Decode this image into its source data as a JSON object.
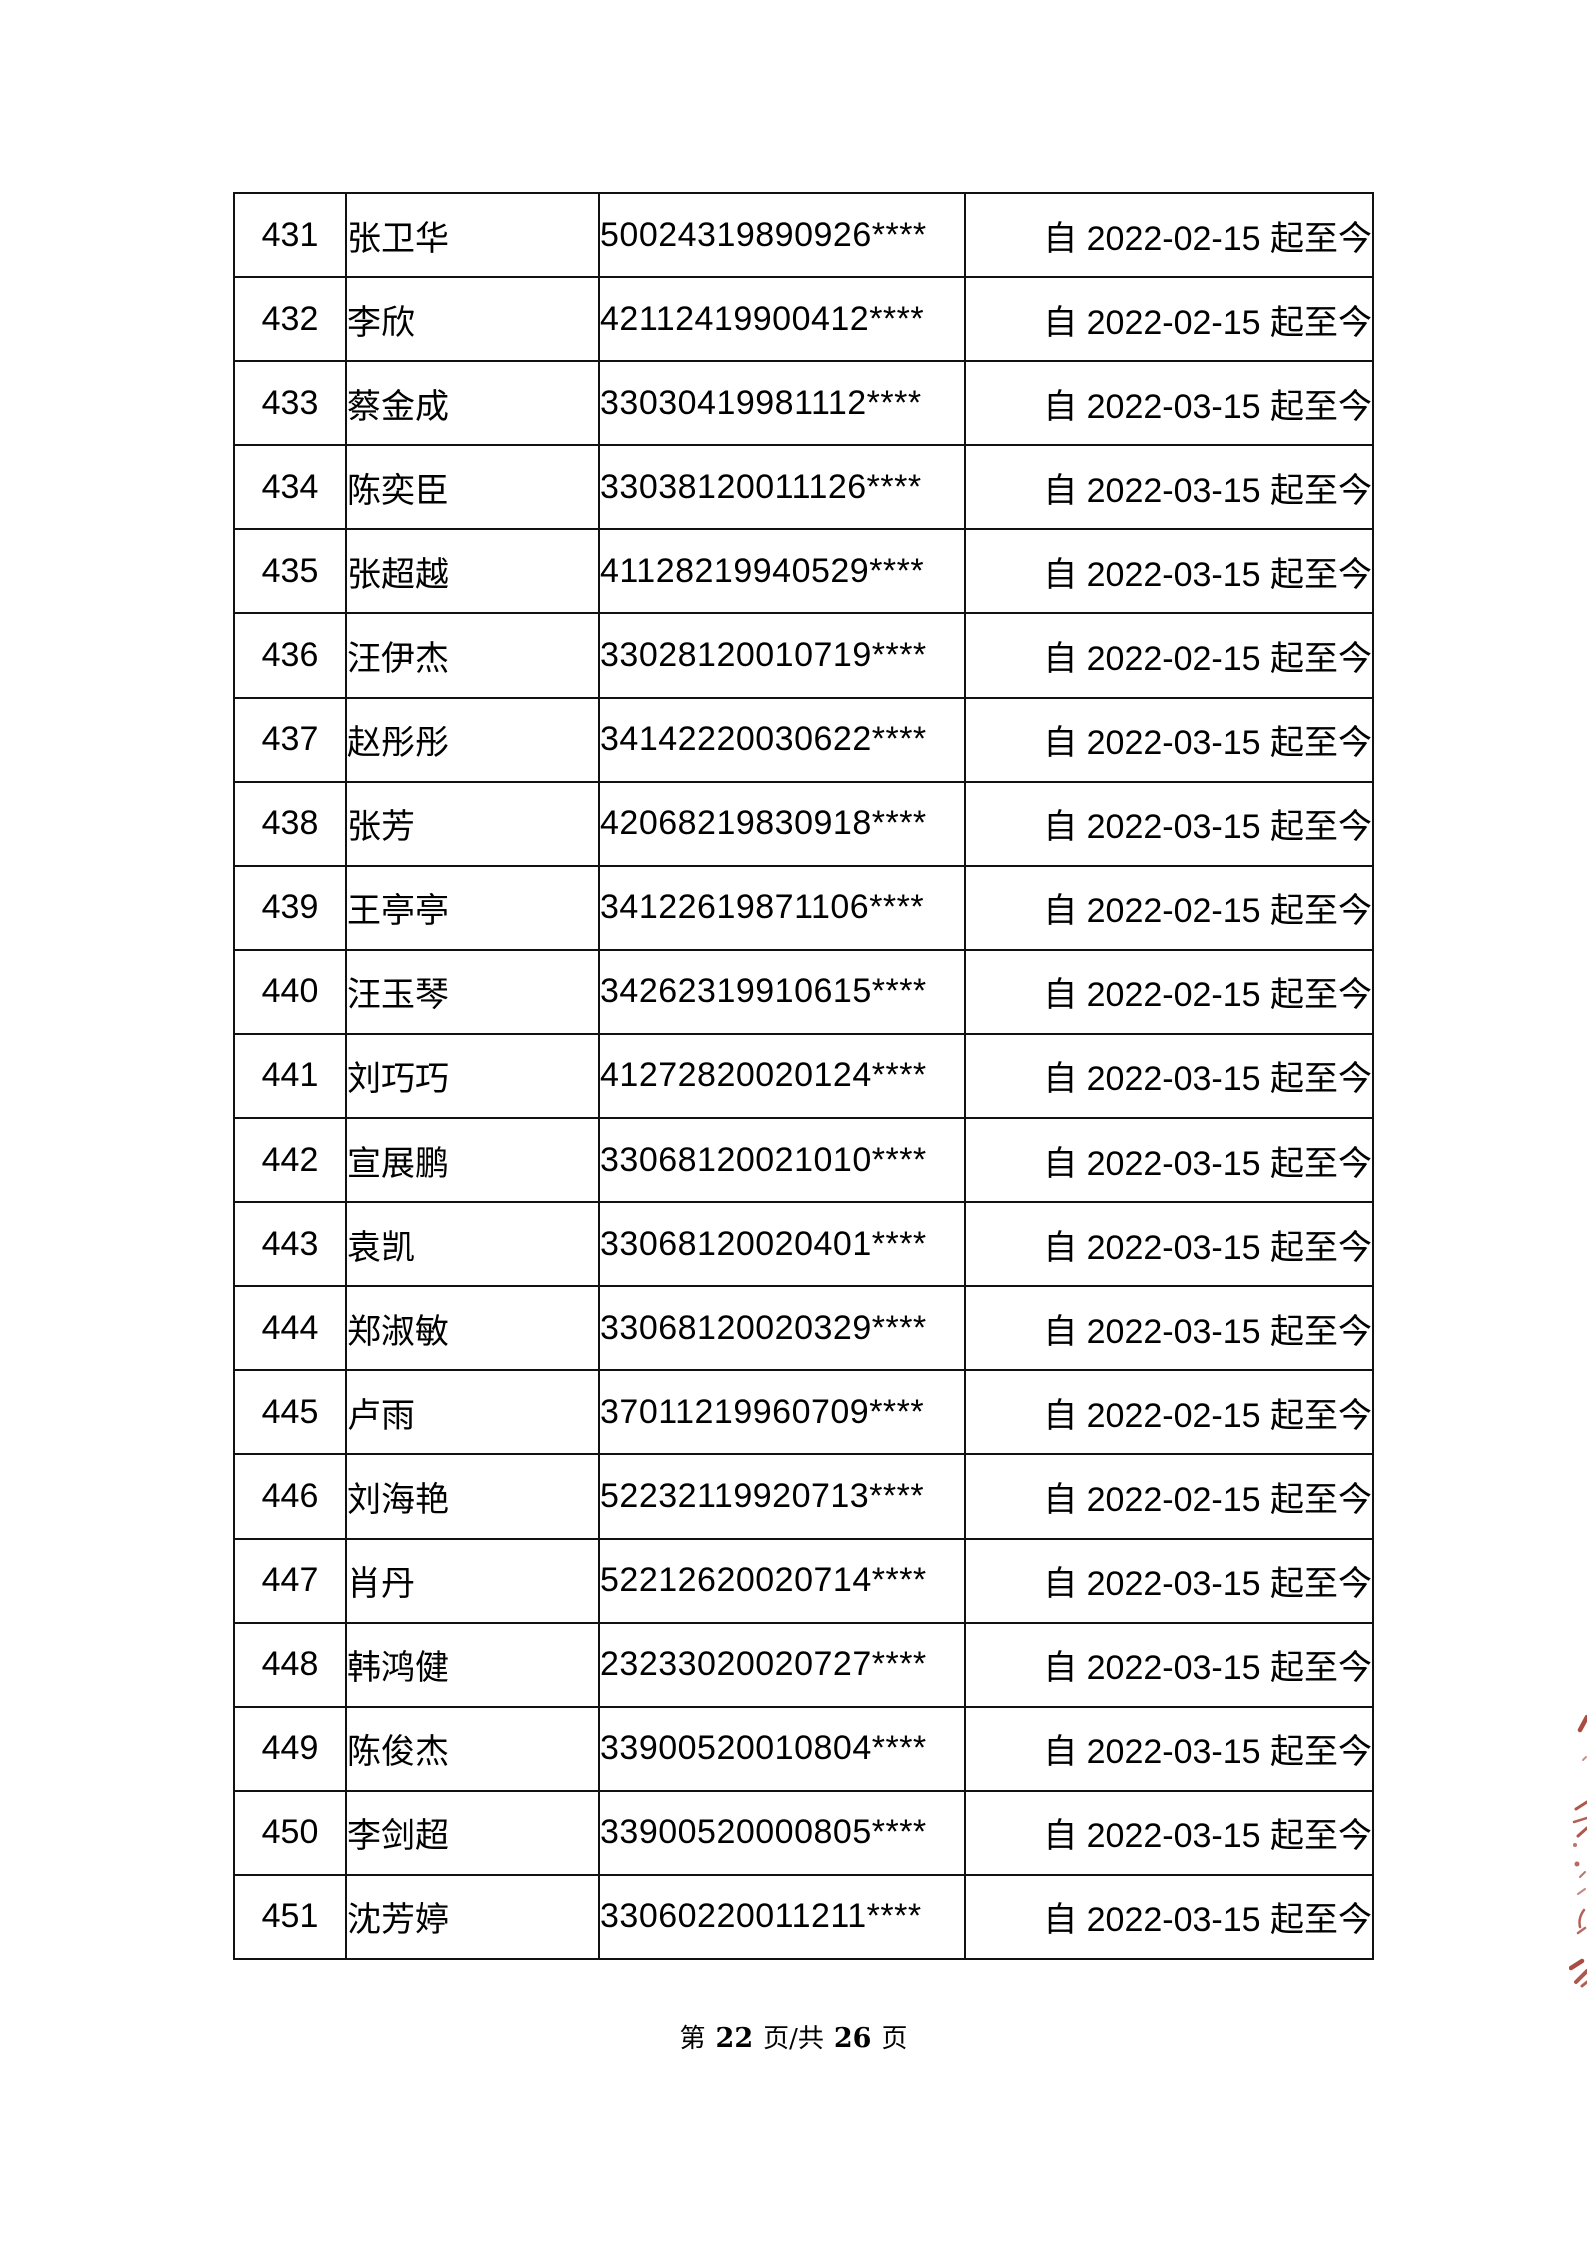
{
  "table": {
    "rows": [
      {
        "no": "431",
        "name": "张卫华",
        "id_number": "50024319890926****",
        "period": "自 2022-02-15 起至今"
      },
      {
        "no": "432",
        "name": "李欣",
        "id_number": "42112419900412****",
        "period": "自 2022-02-15 起至今"
      },
      {
        "no": "433",
        "name": "蔡金成",
        "id_number": "33030419981112****",
        "period": "自 2022-03-15 起至今"
      },
      {
        "no": "434",
        "name": "陈奕臣",
        "id_number": "33038120011126****",
        "period": "自 2022-03-15 起至今"
      },
      {
        "no": "435",
        "name": "张超越",
        "id_number": "41128219940529****",
        "period": "自 2022-03-15 起至今"
      },
      {
        "no": "436",
        "name": "汪伊杰",
        "id_number": "33028120010719****",
        "period": "自 2022-02-15 起至今"
      },
      {
        "no": "437",
        "name": "赵彤彤",
        "id_number": "34142220030622****",
        "period": "自 2022-03-15 起至今"
      },
      {
        "no": "438",
        "name": "张芳",
        "id_number": "42068219830918****",
        "period": "自 2022-03-15 起至今"
      },
      {
        "no": "439",
        "name": "王亭亭",
        "id_number": "34122619871106****",
        "period": "自 2022-02-15 起至今"
      },
      {
        "no": "440",
        "name": "汪玉琴",
        "id_number": "34262319910615****",
        "period": "自 2022-02-15 起至今"
      },
      {
        "no": "441",
        "name": "刘巧巧",
        "id_number": "41272820020124****",
        "period": "自 2022-03-15 起至今"
      },
      {
        "no": "442",
        "name": "宣展鹏",
        "id_number": "33068120021010****",
        "period": "自 2022-03-15 起至今"
      },
      {
        "no": "443",
        "name": "袁凯",
        "id_number": "33068120020401****",
        "period": "自 2022-03-15 起至今"
      },
      {
        "no": "444",
        "name": "郑淑敏",
        "id_number": "33068120020329****",
        "period": "自 2022-03-15 起至今"
      },
      {
        "no": "445",
        "name": "卢雨",
        "id_number": "37011219960709****",
        "period": "自 2022-02-15 起至今"
      },
      {
        "no": "446",
        "name": "刘海艳",
        "id_number": "52232119920713****",
        "period": "自 2022-02-15 起至今"
      },
      {
        "no": "447",
        "name": "肖丹",
        "id_number": "52212620020714****",
        "period": "自 2022-03-15 起至今"
      },
      {
        "no": "448",
        "name": "韩鸿健",
        "id_number": "23233020020727****",
        "period": "自 2022-03-15 起至今"
      },
      {
        "no": "449",
        "name": "陈俊杰",
        "id_number": "33900520010804****",
        "period": "自 2022-03-15 起至今"
      },
      {
        "no": "450",
        "name": "李剑超",
        "id_number": "33900520000805****",
        "period": "自 2022-03-15 起至今"
      },
      {
        "no": "451",
        "name": "沈芳婷",
        "id_number": "33060220011211****",
        "period": "自 2022-03-15 起至今"
      }
    ]
  },
  "footer": {
    "prefix": "第",
    "page_number": "22",
    "separator": "页/共",
    "total_pages": "26",
    "suffix": "页"
  },
  "seal": {
    "name": "red-seal-fragment",
    "color": "#a0392e"
  }
}
